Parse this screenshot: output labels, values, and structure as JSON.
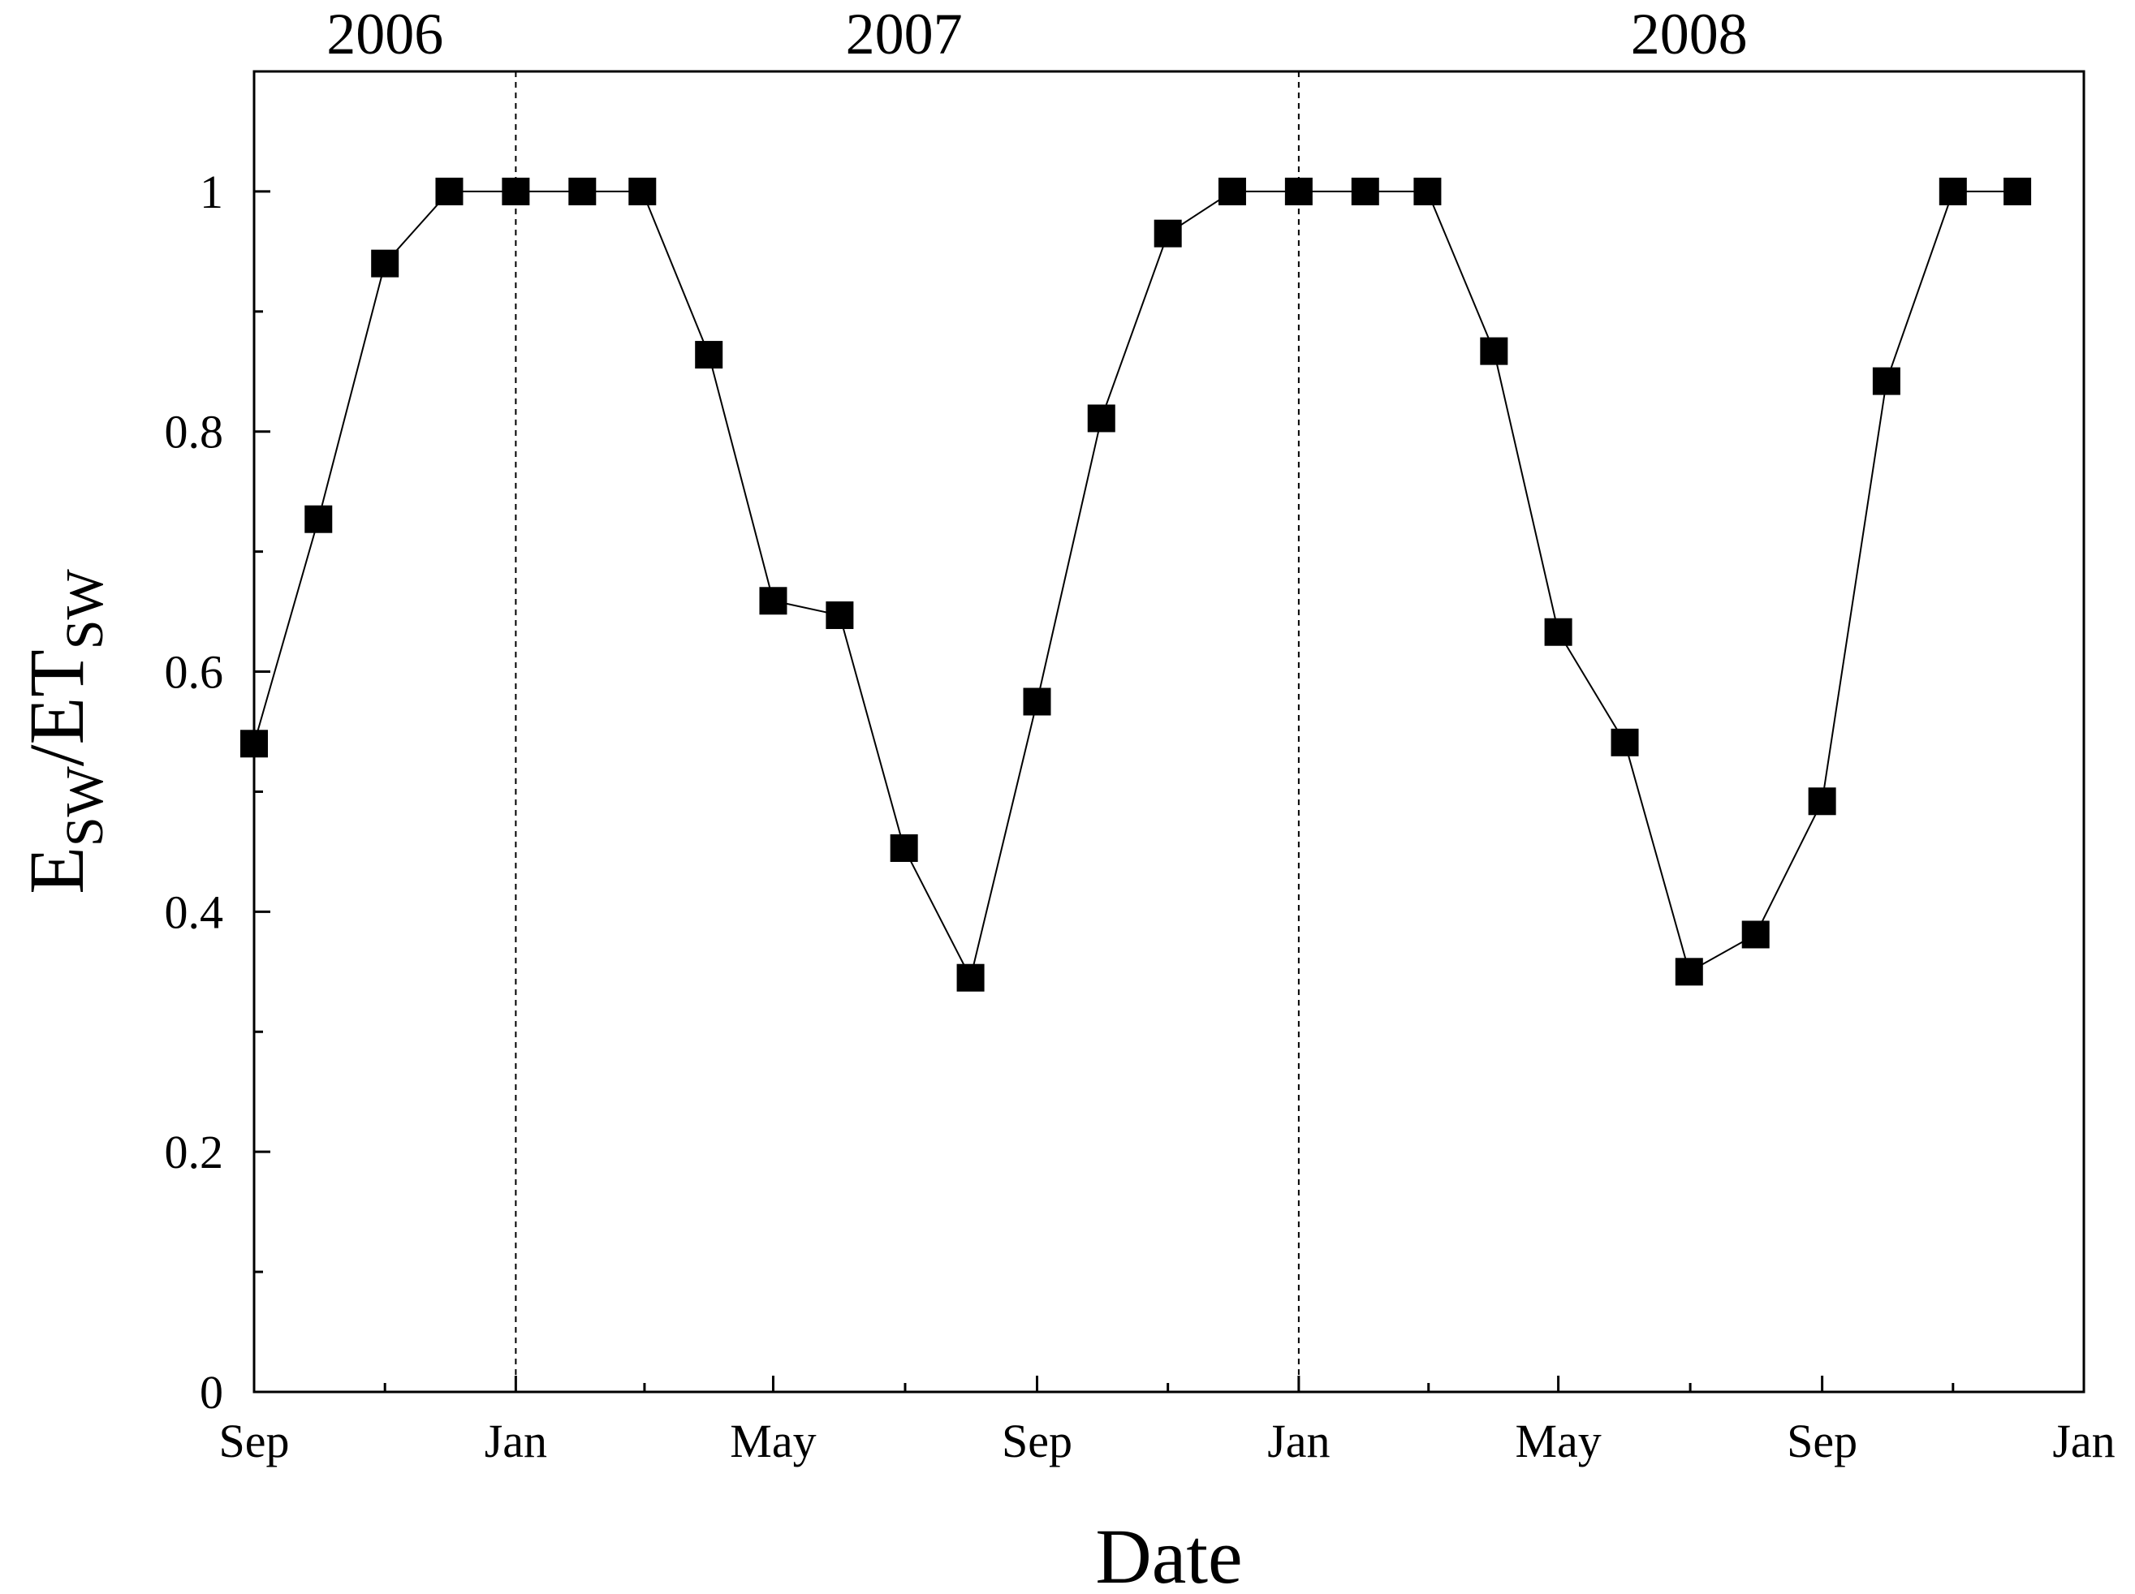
{
  "chart_data": {
    "type": "scatter",
    "xlabel": "Date",
    "ylabel": {
      "main1": "E",
      "sub1": "SW",
      "slash": "/ET",
      "sub2": "SW"
    },
    "ylim": [
      0,
      1.1
    ],
    "xlim": [
      "2006-09-01",
      "2009-01-01"
    ],
    "y_ticks": [
      0,
      0.2,
      0.4,
      0.6,
      0.8,
      1
    ],
    "y_tick_labels": [
      "0",
      "0.2",
      "0.4",
      "0.6",
      "0.8",
      "1"
    ],
    "x_ticks": [
      {
        "date": "2006-09-01",
        "label": "Sep"
      },
      {
        "date": "2007-01-01",
        "label": "Jan"
      },
      {
        "date": "2007-05-01",
        "label": "May"
      },
      {
        "date": "2007-09-01",
        "label": "Sep"
      },
      {
        "date": "2008-01-01",
        "label": "Jan"
      },
      {
        "date": "2008-05-01",
        "label": "May"
      },
      {
        "date": "2008-09-01",
        "label": "Sep"
      },
      {
        "date": "2009-01-01",
        "label": "Jan"
      }
    ],
    "year_labels": [
      {
        "label": "2006",
        "center": "2006-11-01"
      },
      {
        "label": "2007",
        "center": "2007-07-01"
      },
      {
        "label": "2008",
        "center": "2008-07-01"
      }
    ],
    "year_dividers": [
      "2007-01-01",
      "2008-01-01"
    ],
    "grid": false,
    "legend": "none",
    "marker": "square",
    "marker_color": "#000000",
    "line_color": "#000000",
    "series": [
      {
        "points": [
          {
            "x": "2006-09-01",
            "y": 0.54
          },
          {
            "x": "2006-10-01",
            "y": 0.727
          },
          {
            "x": "2006-11-01",
            "y": 0.94
          },
          {
            "x": "2006-12-01",
            "y": 1.0
          },
          {
            "x": "2007-01-01",
            "y": 1.0
          },
          {
            "x": "2007-02-01",
            "y": 1.0
          },
          {
            "x": "2007-03-01",
            "y": 1.0
          },
          {
            "x": "2007-04-01",
            "y": 0.864
          },
          {
            "x": "2007-05-01",
            "y": 0.659
          },
          {
            "x": "2007-06-01",
            "y": 0.647
          },
          {
            "x": "2007-07-01",
            "y": 0.453
          },
          {
            "x": "2007-08-01",
            "y": 0.345
          },
          {
            "x": "2007-09-01",
            "y": 0.575
          },
          {
            "x": "2007-10-01",
            "y": 0.811
          },
          {
            "x": "2007-11-01",
            "y": 0.965
          },
          {
            "x": "2007-12-01",
            "y": 1.0
          },
          {
            "x": "2008-01-01",
            "y": 1.0
          },
          {
            "x": "2008-02-01",
            "y": 1.0
          },
          {
            "x": "2008-03-01",
            "y": 1.0
          },
          {
            "x": "2008-04-01",
            "y": 0.867
          },
          {
            "x": "2008-05-01",
            "y": 0.633
          },
          {
            "x": "2008-06-01",
            "y": 0.541
          },
          {
            "x": "2008-07-01",
            "y": 0.35
          },
          {
            "x": "2008-08-01",
            "y": 0.381
          },
          {
            "x": "2008-09-01",
            "y": 0.492
          },
          {
            "x": "2008-10-01",
            "y": 0.842
          },
          {
            "x": "2008-11-01",
            "y": 1.0
          },
          {
            "x": "2008-12-01",
            "y": 1.0
          }
        ]
      }
    ]
  }
}
